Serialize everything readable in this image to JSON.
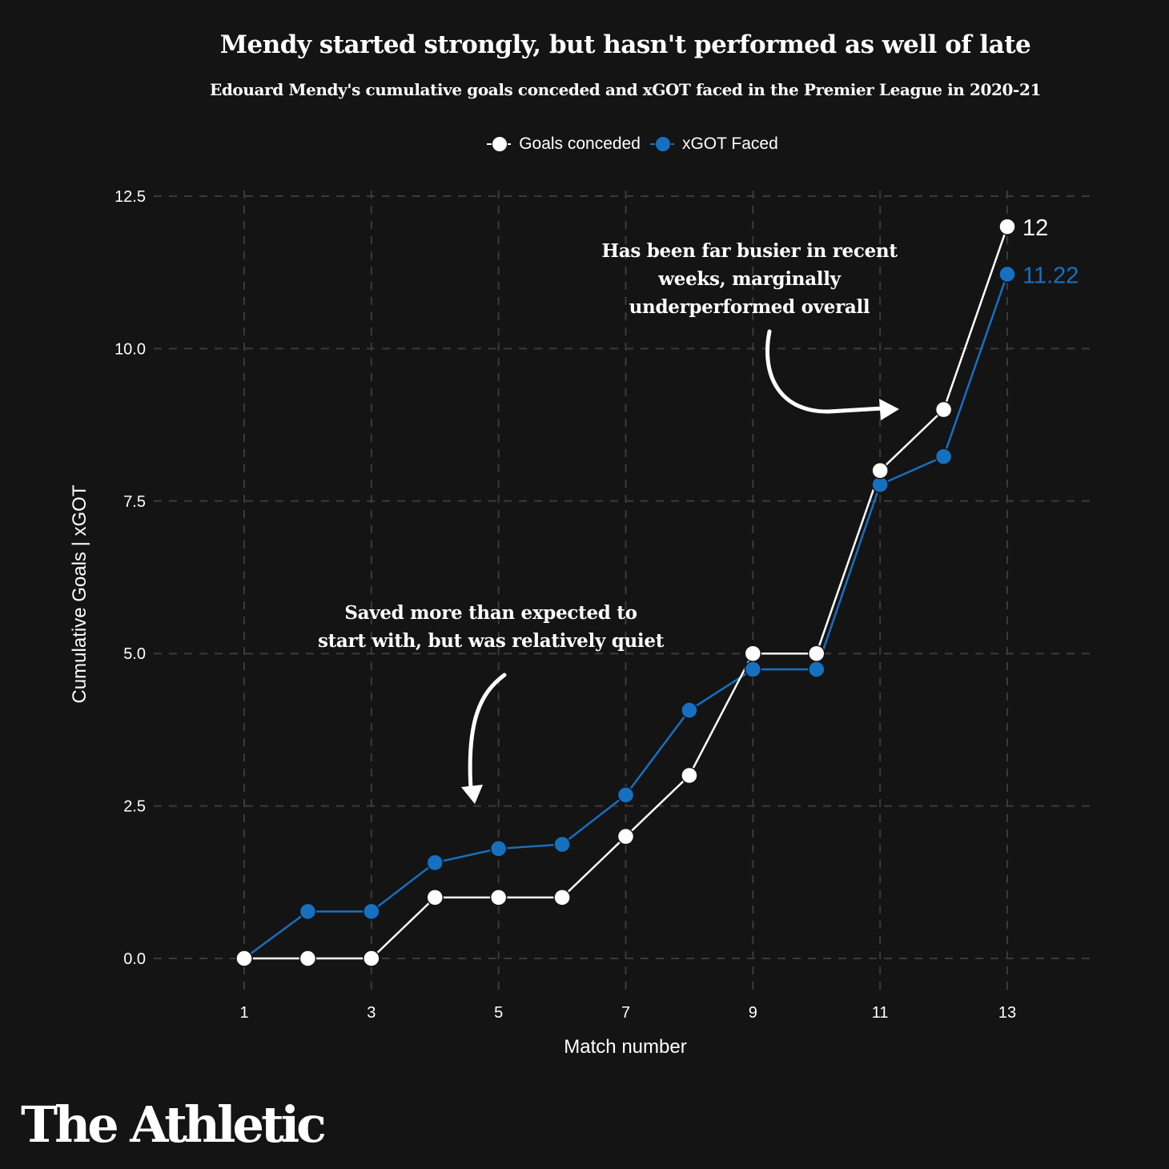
{
  "chart_data": {
    "type": "line",
    "title": "Mendy started strongly, but hasn't performed as well of late",
    "subtitle": "Edouard Mendy's cumulative goals conceded and xGOT faced in the Premier League in 2020-21",
    "xlabel": "Match number",
    "ylabel": "Cumulative Goals | xGOT",
    "x": [
      1,
      2,
      3,
      4,
      5,
      6,
      7,
      8,
      9,
      10,
      11,
      12,
      13
    ],
    "xticks": [
      1,
      3,
      5,
      7,
      9,
      11,
      13
    ],
    "xtick_labels": [
      "1",
      "3",
      "5",
      "7",
      "9",
      "11",
      "13"
    ],
    "xlim": [
      -0.4,
      14.4
    ],
    "yticks": [
      0,
      2.5,
      5,
      7.5,
      10,
      12.5
    ],
    "ytick_labels": [
      "0.0",
      "2.5",
      "5.0",
      "7.5",
      "10.0",
      "12.5"
    ],
    "ylim": [
      -0.6,
      12.65
    ],
    "grid": true,
    "legend_position": "top-center",
    "series": [
      {
        "name": "Goals conceded",
        "color": "#ffffff",
        "values": [
          0,
          0,
          0,
          1,
          1,
          1,
          2,
          3,
          5,
          5,
          8,
          9,
          12
        ],
        "end_label": "12"
      },
      {
        "name": "xGOT Faced",
        "color": "#1670c0",
        "values": [
          0,
          0.77,
          0.77,
          1.57,
          1.8,
          1.87,
          2.68,
          4.07,
          4.74,
          4.74,
          7.77,
          8.23,
          11.22
        ],
        "end_label": "11.22"
      }
    ],
    "annotations": [
      {
        "lines": [
          "Has been far busier in recent",
          "weeks, marginally",
          "underperformed overall"
        ],
        "points_to": "match 11"
      },
      {
        "lines": [
          "Saved more than expected to",
          "start with, but was relatively quiet"
        ],
        "points_to": "matches 3-5"
      }
    ]
  },
  "legend": {
    "items": [
      {
        "label": "Goals conceded",
        "color": "#ffffff"
      },
      {
        "label": "xGOT Faced",
        "color": "#1670c0"
      }
    ]
  },
  "colors": {
    "background": "#141414",
    "grid": "#3a3a3a",
    "text": "#ffffff",
    "accent": "#1670c0"
  },
  "branding": {
    "logo_text": "The Athletic"
  }
}
